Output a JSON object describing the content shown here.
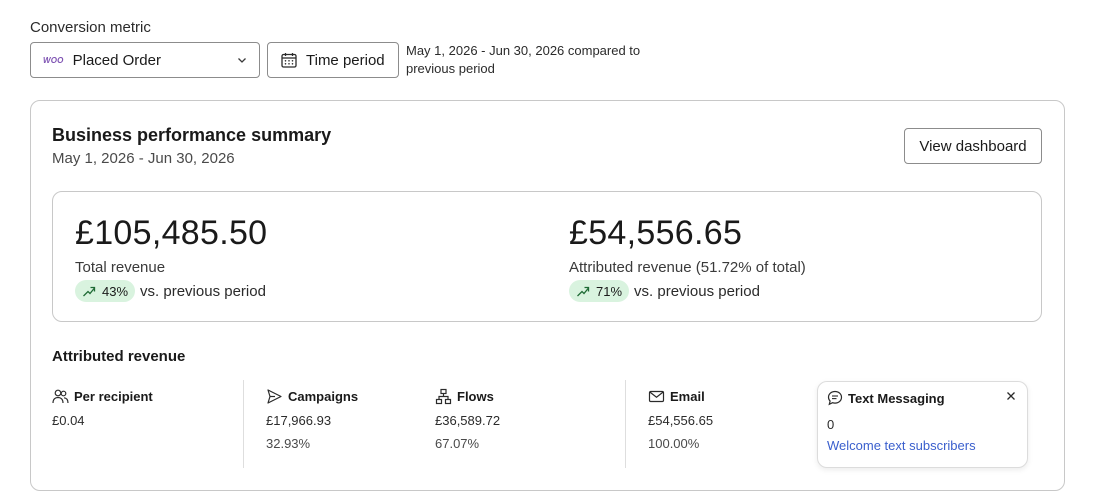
{
  "header": {
    "conversion_metric_label": "Conversion metric",
    "metric_select": {
      "logo_text": "WOO",
      "value": "Placed Order"
    },
    "time_period_label": "Time period",
    "date_range_text": "May 1, 2026 - Jun 30, 2026 compared to previous period"
  },
  "summary": {
    "title": "Business performance summary",
    "date_range": "May 1, 2026 - Jun 30, 2026",
    "view_dashboard_label": "View dashboard",
    "total_revenue": {
      "value": "£105,485.50",
      "label": "Total revenue",
      "change": "43%",
      "change_text": "vs. previous period"
    },
    "attributed_revenue": {
      "value": "£54,556.65",
      "label": "Attributed revenue (51.72% of total)",
      "change": "71%",
      "change_text": "vs. previous period"
    }
  },
  "attributed": {
    "title": "Attributed revenue",
    "per_recipient": {
      "label": "Per recipient",
      "value": "£0.04",
      "icon": "users-icon"
    },
    "campaigns": {
      "label": "Campaigns",
      "value": "£17,966.93",
      "pct": "32.93%",
      "icon": "send-icon"
    },
    "flows": {
      "label": "Flows",
      "value": "£36,589.72",
      "pct": "67.07%",
      "icon": "flow-icon"
    },
    "email": {
      "label": "Email",
      "value": "£54,556.65",
      "pct": "100.00%",
      "icon": "envelope-icon"
    },
    "text_messaging": {
      "label": "Text Messaging",
      "value": "0",
      "link": "Welcome text subscribers",
      "icon": "chat-bubble-icon"
    }
  },
  "colors": {
    "accent_link": "#3a5fcd",
    "positive_pill": "#d9f3df",
    "woo_brand": "#7f54b3",
    "border": "#c8c8c8"
  }
}
